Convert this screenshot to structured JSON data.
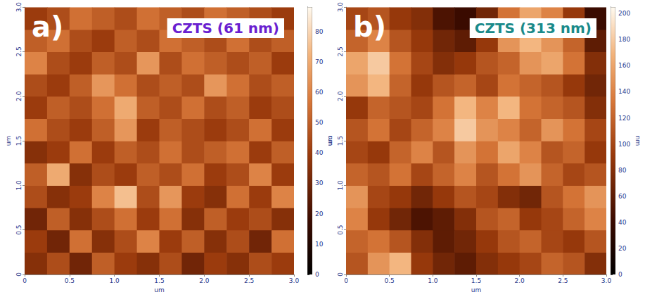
{
  "chart_data": [
    {
      "type": "heatmap",
      "panel": "a)",
      "title": "CZTS (61 nm)",
      "x_label": "um",
      "y_label": "um",
      "xlim": [
        0,
        3
      ],
      "ylim": [
        0,
        3
      ],
      "xticks": [
        0,
        0.5,
        {
          "value": 1,
          "label": "1.0"
        },
        1.5,
        {
          "value": 2,
          "label": "2.0"
        },
        2.5,
        {
          "value": 3,
          "label": "3.0"
        }
      ],
      "yticks": [
        0,
        0.5,
        {
          "value": 1,
          "label": "1.0"
        },
        1.5,
        {
          "value": 2,
          "label": "2.0"
        },
        2.5,
        {
          "value": 3,
          "label": "3.0"
        }
      ],
      "x": [
        0.125,
        0.375,
        0.625,
        0.875,
        1.125,
        1.375,
        1.625,
        1.875,
        2.125,
        2.375,
        2.625,
        2.875
      ],
      "y": [
        0.125,
        0.375,
        0.625,
        0.875,
        1.125,
        1.375,
        1.625,
        1.875,
        2.125,
        2.375,
        2.625,
        2.875
      ],
      "cells": [
        [
          35,
          45,
          30,
          50,
          40,
          35,
          45,
          30,
          40,
          35,
          45,
          40
        ],
        [
          40,
          30,
          55,
          35,
          45,
          60,
          40,
          50,
          35,
          45,
          30,
          55
        ],
        [
          30,
          50,
          35,
          45,
          55,
          40,
          55,
          35,
          50,
          40,
          45,
          35
        ],
        [
          45,
          35,
          40,
          60,
          75,
          45,
          65,
          40,
          35,
          55,
          40,
          60
        ],
        [
          50,
          70,
          35,
          45,
          40,
          50,
          45,
          55,
          40,
          45,
          60,
          40
        ],
        [
          35,
          40,
          55,
          40,
          50,
          45,
          55,
          45,
          50,
          55,
          40,
          50
        ],
        [
          55,
          45,
          40,
          50,
          65,
          40,
          50,
          45,
          40,
          45,
          55,
          40
        ],
        [
          40,
          50,
          45,
          55,
          70,
          50,
          45,
          55,
          45,
          50,
          40,
          45
        ],
        [
          45,
          40,
          50,
          65,
          55,
          45,
          50,
          45,
          65,
          55,
          45,
          50
        ],
        [
          60,
          45,
          40,
          50,
          45,
          65,
          45,
          55,
          50,
          45,
          50,
          40
        ],
        [
          50,
          55,
          45,
          40,
          50,
          45,
          55,
          50,
          45,
          55,
          45,
          50
        ],
        [
          40,
          45,
          55,
          50,
          45,
          55,
          50,
          45,
          55,
          50,
          45,
          40
        ]
      ],
      "colorbar": {
        "label": "nm",
        "range": [
          0,
          88
        ],
        "ticks": [
          0,
          10,
          20,
          30,
          40,
          50,
          60,
          70,
          80
        ]
      }
    },
    {
      "type": "heatmap",
      "panel": "b)",
      "title": "CZTS (313 nm)",
      "x_label": "um",
      "y_label": "um",
      "xlim": [
        0,
        3
      ],
      "ylim": [
        0,
        3
      ],
      "xticks": [
        0,
        0.5,
        {
          "value": 1,
          "label": "1.0"
        },
        1.5,
        {
          "value": 2,
          "label": "2.0"
        },
        2.5,
        {
          "value": 3,
          "label": "3.0"
        }
      ],
      "yticks": [
        0,
        0.5,
        {
          "value": 1,
          "label": "1.0"
        },
        1.5,
        {
          "value": 2,
          "label": "2.0"
        },
        2.5,
        {
          "value": 3,
          "label": "3.0"
        }
      ],
      "x": [
        0.125,
        0.375,
        0.625,
        0.875,
        1.125,
        1.375,
        1.625,
        1.875,
        2.125,
        2.375,
        2.625,
        2.875
      ],
      "y": [
        0.125,
        0.375,
        0.625,
        0.875,
        1.125,
        1.375,
        1.625,
        1.875,
        2.125,
        2.375,
        2.625,
        2.875
      ],
      "cells": [
        [
          110,
          150,
          170,
          90,
          70,
          60,
          80,
          90,
          100,
          120,
          110,
          80
        ],
        [
          120,
          130,
          110,
          80,
          60,
          70,
          90,
          110,
          120,
          100,
          90,
          110
        ],
        [
          140,
          90,
          70,
          50,
          60,
          80,
          110,
          120,
          90,
          100,
          120,
          140
        ],
        [
          150,
          100,
          90,
          70,
          90,
          110,
          100,
          80,
          70,
          110,
          130,
          150
        ],
        [
          120,
          110,
          130,
          100,
          120,
          140,
          110,
          130,
          150,
          120,
          100,
          110
        ],
        [
          100,
          90,
          120,
          140,
          110,
          150,
          130,
          160,
          140,
          110,
          120,
          90
        ],
        [
          110,
          130,
          100,
          120,
          140,
          180,
          150,
          140,
          120,
          150,
          130,
          100
        ],
        [
          90,
          120,
          110,
          100,
          130,
          170,
          140,
          170,
          130,
          120,
          110,
          80
        ],
        [
          150,
          170,
          120,
          90,
          110,
          120,
          100,
          130,
          120,
          110,
          90,
          70
        ],
        [
          160,
          180,
          130,
          100,
          80,
          90,
          110,
          120,
          150,
          160,
          130,
          80
        ],
        [
          120,
          140,
          110,
          90,
          70,
          60,
          90,
          150,
          170,
          150,
          120,
          60
        ],
        [
          100,
          110,
          90,
          80,
          50,
          40,
          70,
          130,
          160,
          140,
          90,
          40
        ]
      ],
      "colorbar": {
        "label": "nm",
        "range": [
          0,
          205
        ],
        "ticks": [
          0,
          20,
          40,
          60,
          80,
          100,
          120,
          140,
          160,
          180,
          200
        ]
      }
    }
  ]
}
